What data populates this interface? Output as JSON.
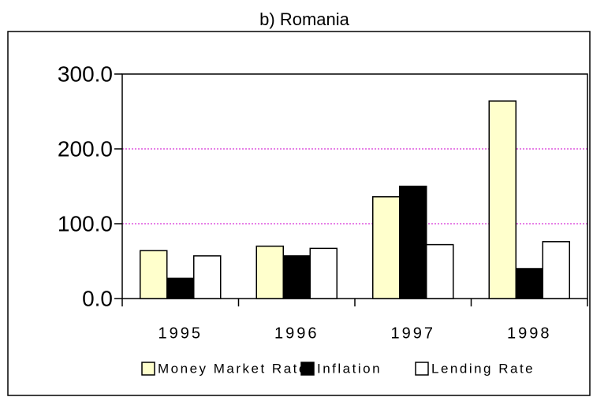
{
  "chart_data": {
    "type": "bar",
    "title": "b) Romania",
    "categories": [
      "1995",
      "1996",
      "1997",
      "1998"
    ],
    "series": [
      {
        "name": "Money Market Rate",
        "color": "#ffffcc",
        "values": [
          64,
          70,
          136,
          264
        ]
      },
      {
        "name": "Inflation",
        "color": "#000000",
        "values": [
          27,
          57,
          150,
          40
        ]
      },
      {
        "name": "Lending Rate",
        "color": "#ffffff",
        "values": [
          57,
          67,
          72,
          76
        ]
      }
    ],
    "ylim": [
      0,
      300
    ],
    "yticks": [
      {
        "value": 0,
        "label": "0.0"
      },
      {
        "value": 100,
        "label": "100.0"
      },
      {
        "value": 200,
        "label": "200.0"
      },
      {
        "value": 300,
        "label": "300.0"
      }
    ],
    "grid": true,
    "grid_color": "#cc00cc",
    "legend": "bottom"
  }
}
